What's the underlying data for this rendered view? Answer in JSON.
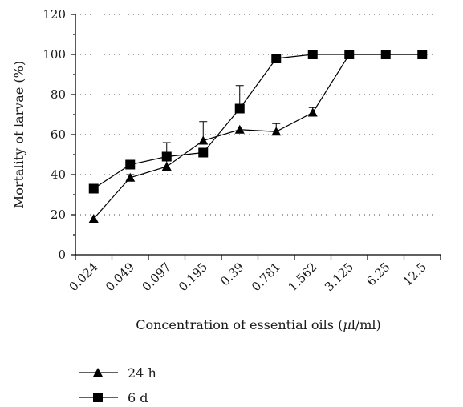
{
  "chart_data": {
    "type": "line",
    "xlabel": "Concentration of essential oils (µl/ml)",
    "ylabel": "Mortality of larvae (%)",
    "categories": [
      "0.024",
      "0.049",
      "0.097",
      "0.195",
      "0.39",
      "0.781",
      "1.562",
      "3.125",
      "6.25",
      "12.5"
    ],
    "ylim": [
      0,
      120
    ],
    "yticks": [
      "0",
      "20",
      "40",
      "60",
      "80",
      "100",
      "120"
    ],
    "grid": "horizontal dotted",
    "legend_position": "bottom-left",
    "series": [
      {
        "name": "24 h",
        "marker": "triangle",
        "values": [
          18,
          38.5,
          44,
          57,
          62.5,
          61.5,
          71,
          100,
          100,
          100
        ],
        "error_plus": [
          0,
          1.5,
          12,
          9.5,
          0,
          4,
          2.5,
          0,
          0,
          0
        ]
      },
      {
        "name": "6 d",
        "marker": "square",
        "values": [
          33,
          45,
          49,
          51,
          73,
          98,
          100,
          100,
          100,
          100
        ],
        "error_plus": [
          0,
          0,
          0,
          0,
          11.5,
          0,
          0,
          0,
          0,
          0
        ]
      }
    ]
  }
}
